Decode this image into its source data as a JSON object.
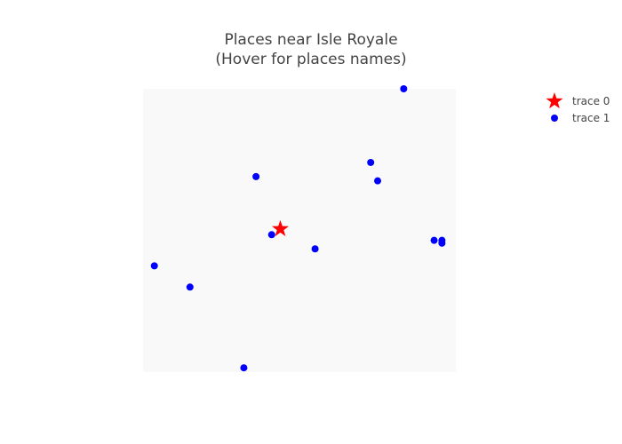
{
  "chart_data": {
    "type": "scatter",
    "title_lines": [
      "Places near Isle Royale",
      "(Hover for places names)"
    ],
    "xlim": [
      -91.3,
      -87.7
    ],
    "ylim": [
      46.9,
      48.9
    ],
    "grid": false,
    "axes_visible": false,
    "legend_position": "top-right",
    "plot_background": "#f9f9f9",
    "series": [
      {
        "name": "trace 0",
        "marker": "star",
        "color": "#ff0000",
        "points": [
          {
            "x": -89.72,
            "y": 47.91
          }
        ]
      },
      {
        "name": "trace 1",
        "marker": "circle",
        "color": "#0000ff",
        "points": [
          {
            "x": -88.3,
            "y": 48.9
          },
          {
            "x": -88.68,
            "y": 48.38
          },
          {
            "x": -88.6,
            "y": 48.25
          },
          {
            "x": -90.0,
            "y": 48.28
          },
          {
            "x": -89.82,
            "y": 47.87
          },
          {
            "x": -89.32,
            "y": 47.77
          },
          {
            "x": -87.95,
            "y": 47.83
          },
          {
            "x": -87.86,
            "y": 47.83
          },
          {
            "x": -87.86,
            "y": 47.81
          },
          {
            "x": -91.17,
            "y": 47.65
          },
          {
            "x": -90.76,
            "y": 47.5
          },
          {
            "x": -90.14,
            "y": 46.93
          }
        ]
      }
    ]
  }
}
